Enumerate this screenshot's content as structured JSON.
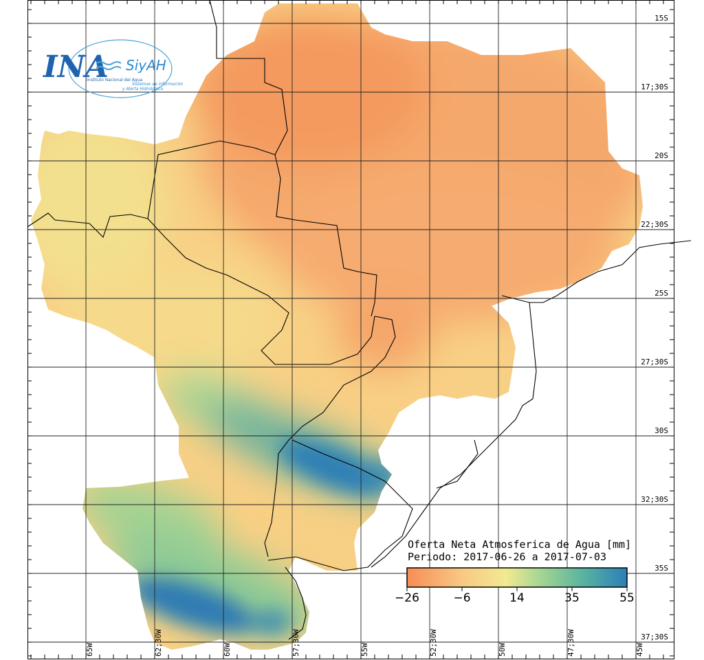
{
  "logo": {
    "main": "INA",
    "secondary": "SiyAH",
    "caption": "Instituto Nacional del Agua",
    "sub_caption_1": "Sistemas de información",
    "sub_caption_2": "y Alerta Hidrológico"
  },
  "legend": {
    "title": "Oferta Neta Atmosferica de Agua [mm]",
    "period": "Periodo: 2017-06-26 a 2017-07-03",
    "ticks": [
      "−26",
      "−6",
      "14",
      "35",
      "55"
    ],
    "colors": [
      "#f68d55",
      "#f9c884",
      "#f1ea91",
      "#9fd393",
      "#59b3a0",
      "#2c7fb8"
    ]
  },
  "lat_labels": [
    "15S",
    "17;30S",
    "20S",
    "22;30S",
    "25S",
    "27;30S",
    "30S",
    "32;30S",
    "35S",
    "37;30S"
  ],
  "lon_labels": [
    "65W",
    "62;30W",
    "60W",
    "57;30W",
    "55W",
    "52;30W",
    "50W",
    "47;30W",
    "45W"
  ],
  "map_colors": {
    "orange": "#f5a56a",
    "light_orange": "#f8c27c",
    "yellow": "#f5e18f",
    "yellow_green": "#dfe99a",
    "green": "#96cf94",
    "teal": "#4fa5a6",
    "blue": "#2a78b2"
  }
}
